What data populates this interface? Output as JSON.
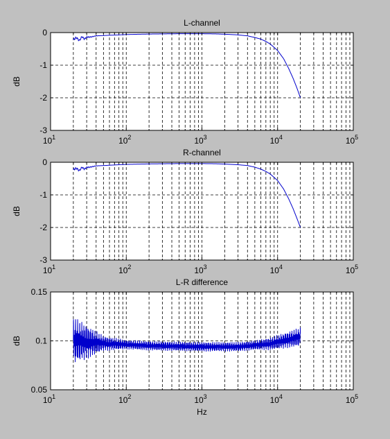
{
  "figure": {
    "background": "#c0c0c0",
    "axes_background": "#ffffff",
    "line_color": "#0000cc",
    "grid_color": "#000000"
  },
  "chart_data": [
    {
      "type": "line",
      "title": "L-channel",
      "xlabel": "",
      "ylabel": "dB",
      "xscale": "log",
      "xlim": [
        10,
        100000
      ],
      "ylim": [
        -3,
        0
      ],
      "yticks": [
        "-3",
        "-2",
        "-1",
        "0"
      ],
      "xticks": [
        {
          "base": "10",
          "exp": "1"
        },
        {
          "base": "10",
          "exp": "2"
        },
        {
          "base": "10",
          "exp": "3"
        },
        {
          "base": "10",
          "exp": "4"
        },
        {
          "base": "10",
          "exp": "5"
        }
      ],
      "grid": true,
      "series": [
        {
          "color": "#0000cc",
          "x": [
            20,
            22,
            24,
            26,
            28,
            30,
            35,
            40,
            50,
            60,
            80,
            100,
            150,
            200,
            300,
            500,
            800,
            1000,
            1500,
            2000,
            3000,
            4000,
            5000,
            6000,
            7000,
            8000,
            10000,
            12000,
            14000,
            16000,
            18000,
            20000
          ],
          "y": [
            -0.22,
            -0.15,
            -0.25,
            -0.12,
            -0.2,
            -0.14,
            -0.13,
            -0.1,
            -0.09,
            -0.08,
            -0.07,
            -0.06,
            -0.05,
            -0.045,
            -0.04,
            -0.035,
            -0.035,
            -0.035,
            -0.04,
            -0.05,
            -0.07,
            -0.1,
            -0.15,
            -0.2,
            -0.27,
            -0.35,
            -0.55,
            -0.8,
            -1.1,
            -1.4,
            -1.7,
            -2.0
          ]
        }
      ]
    },
    {
      "type": "line",
      "title": "R-channel",
      "xlabel": "",
      "ylabel": "dB",
      "xscale": "log",
      "xlim": [
        10,
        100000
      ],
      "ylim": [
        -3,
        0
      ],
      "yticks": [
        "-3",
        "-2",
        "-1",
        "0"
      ],
      "xticks": [
        {
          "base": "10",
          "exp": "1"
        },
        {
          "base": "10",
          "exp": "2"
        },
        {
          "base": "10",
          "exp": "3"
        },
        {
          "base": "10",
          "exp": "4"
        },
        {
          "base": "10",
          "exp": "5"
        }
      ],
      "grid": true,
      "series": [
        {
          "color": "#0000cc",
          "x": [
            20,
            22,
            24,
            26,
            28,
            30,
            35,
            40,
            50,
            60,
            80,
            100,
            150,
            200,
            300,
            500,
            800,
            1000,
            1500,
            2000,
            3000,
            4000,
            5000,
            6000,
            7000,
            8000,
            10000,
            12000,
            14000,
            16000,
            18000,
            20000
          ],
          "y": [
            -0.23,
            -0.18,
            -0.26,
            -0.15,
            -0.21,
            -0.16,
            -0.14,
            -0.11,
            -0.1,
            -0.09,
            -0.075,
            -0.065,
            -0.055,
            -0.05,
            -0.045,
            -0.04,
            -0.04,
            -0.04,
            -0.045,
            -0.055,
            -0.075,
            -0.1,
            -0.15,
            -0.21,
            -0.28,
            -0.36,
            -0.56,
            -0.82,
            -1.12,
            -1.42,
            -1.72,
            -2.0
          ]
        }
      ]
    },
    {
      "type": "line",
      "title": "L-R difference",
      "xlabel": "Hz",
      "ylabel": "dB",
      "xscale": "log",
      "xlim": [
        10,
        100000
      ],
      "ylim": [
        0.05,
        0.15
      ],
      "yticks": [
        "0.05",
        "0.1",
        "0.15"
      ],
      "xticks": [
        {
          "base": "10",
          "exp": "1"
        },
        {
          "base": "10",
          "exp": "2"
        },
        {
          "base": "10",
          "exp": "3"
        },
        {
          "base": "10",
          "exp": "4"
        },
        {
          "base": "10",
          "exp": "5"
        }
      ],
      "grid": true,
      "series": [
        {
          "color": "#0000cc",
          "x_range": [
            20,
            20000
          ],
          "center": [
            [
              20,
              0.1
            ],
            [
              60,
              0.097
            ],
            [
              200,
              0.095
            ],
            [
              1000,
              0.094
            ],
            [
              3000,
              0.094
            ],
            [
              8000,
              0.097
            ],
            [
              20000,
              0.104
            ]
          ],
          "amplitude": [
            [
              20,
              0.025
            ],
            [
              30,
              0.018
            ],
            [
              50,
              0.008
            ],
            [
              100,
              0.005
            ],
            [
              1000,
              0.005
            ],
            [
              5000,
              0.005
            ],
            [
              20000,
              0.01
            ]
          ]
        }
      ]
    }
  ]
}
